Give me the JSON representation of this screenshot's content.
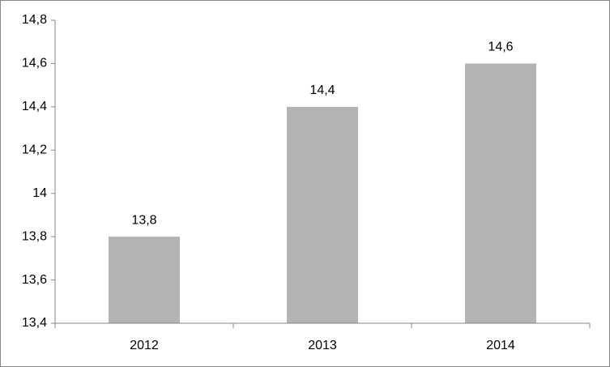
{
  "chart_data": {
    "type": "bar",
    "categories": [
      "2012",
      "2013",
      "2014"
    ],
    "values": [
      13.8,
      14.4,
      14.6
    ],
    "value_labels": [
      "13,8",
      "14,4",
      "14,6"
    ],
    "color": "#b3b3b3",
    "ylim": [
      13.4,
      14.8
    ],
    "yticks": [
      {
        "value": 13.4,
        "label": "13,4"
      },
      {
        "value": 13.6,
        "label": "13,6"
      },
      {
        "value": 13.8,
        "label": "13,8"
      },
      14,
      {
        "value": 14.2,
        "label": "14,2"
      },
      {
        "value": 14.4,
        "label": "14,4"
      },
      {
        "value": 14.6,
        "label": "14,6"
      },
      {
        "value": 14.8,
        "label": "14,8"
      }
    ],
    "grid": false
  }
}
